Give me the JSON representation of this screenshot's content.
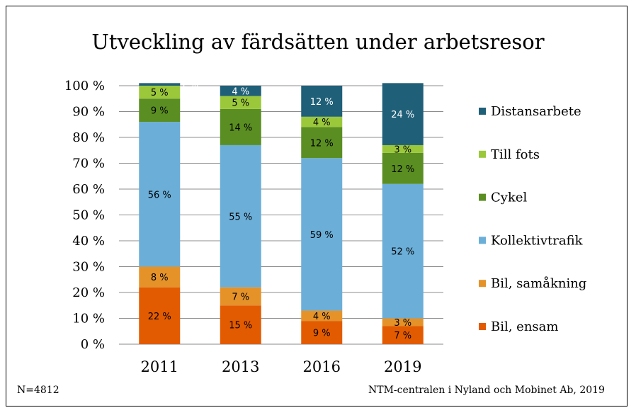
{
  "chart_data": {
    "type": "bar",
    "stacked": true,
    "title": "Utveckling av färdsätten under arbetsresor",
    "categories": [
      "2011",
      "2013",
      "2016",
      "2019"
    ],
    "ylim": [
      0,
      100
    ],
    "yticks": [
      "0 %",
      "10 %",
      "20 %",
      "30 %",
      "40 %",
      "50 %",
      "60 %",
      "70 %",
      "80 %",
      "90 %",
      "100 %"
    ],
    "grid": true,
    "legend_position": "right",
    "series": [
      {
        "name": "Bil, ensam",
        "color": "#e35b00",
        "values": [
          22,
          15,
          9,
          7
        ],
        "labels": [
          "22 %",
          "15 %",
          "9 %",
          "7 %"
        ]
      },
      {
        "name": "Bil, samåkning",
        "color": "#e59229",
        "values": [
          8,
          7,
          4,
          3
        ],
        "labels": [
          "8 %",
          "7 %",
          "4 %",
          "3 %"
        ]
      },
      {
        "name": "Kollektivtrafik",
        "color": "#6baed8",
        "values": [
          56,
          55,
          59,
          52
        ],
        "labels": [
          "56 %",
          "55 %",
          "59 %",
          "52 %"
        ]
      },
      {
        "name": "Cykel",
        "color": "#5a8e22",
        "values": [
          9,
          14,
          12,
          12
        ],
        "labels": [
          "9 %",
          "14 %",
          "12 %",
          "12 %"
        ]
      },
      {
        "name": "Till fots",
        "color": "#9bc83b",
        "values": [
          5,
          5,
          4,
          3
        ],
        "labels": [
          "5 %",
          "5 %",
          "4 %",
          "3 %"
        ]
      },
      {
        "name": "Distansarbete",
        "color": "#1f5f78",
        "values": [
          1,
          4,
          12,
          24
        ],
        "labels": [
          "1 %",
          "4 %",
          "12 %",
          "24 %"
        ]
      }
    ]
  },
  "notes": {
    "sample": "N=4812",
    "source": "NTM-centralen i Nyland och Mobinet Ab, 2019"
  }
}
